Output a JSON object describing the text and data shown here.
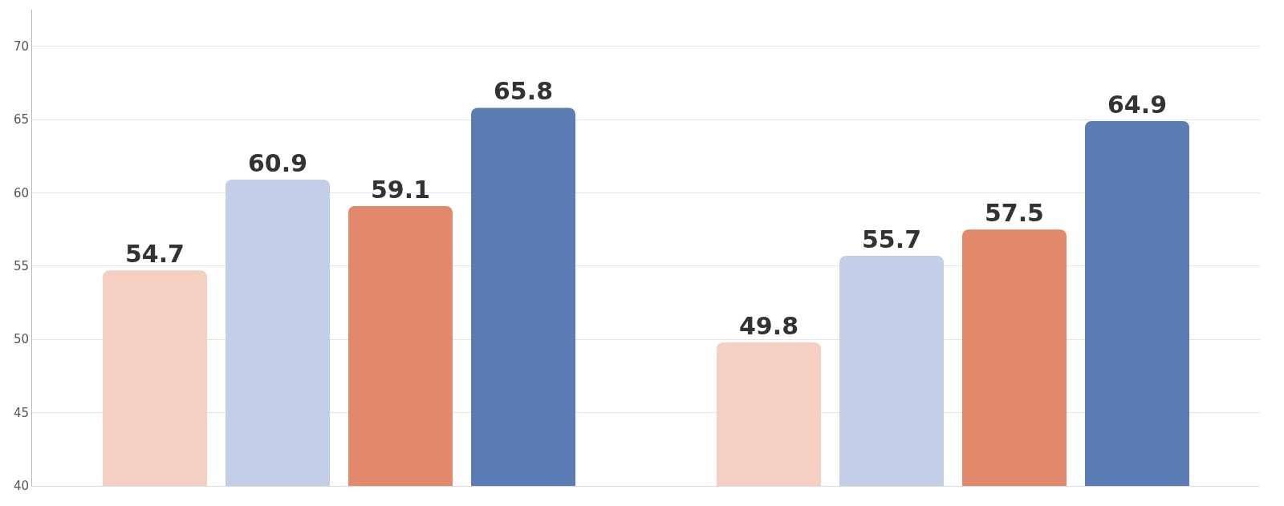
{
  "chart_data": {
    "type": "bar",
    "categories": [
      null,
      null
    ],
    "series": [
      {
        "color": "#f5d0c2",
        "values": [
          54.7,
          49.8
        ]
      },
      {
        "color": "#c3cfe6",
        "values": [
          60.9,
          55.7
        ]
      },
      {
        "color": "#e3896b",
        "values": [
          59.1,
          57.5
        ]
      },
      {
        "color": "#5b7db3",
        "values": [
          65.8,
          64.9
        ]
      }
    ],
    "ylim": [
      40,
      72.5
    ],
    "yticks": [
      40,
      45,
      50,
      55,
      60,
      65,
      70
    ],
    "grid": "y",
    "data_labels": true
  }
}
